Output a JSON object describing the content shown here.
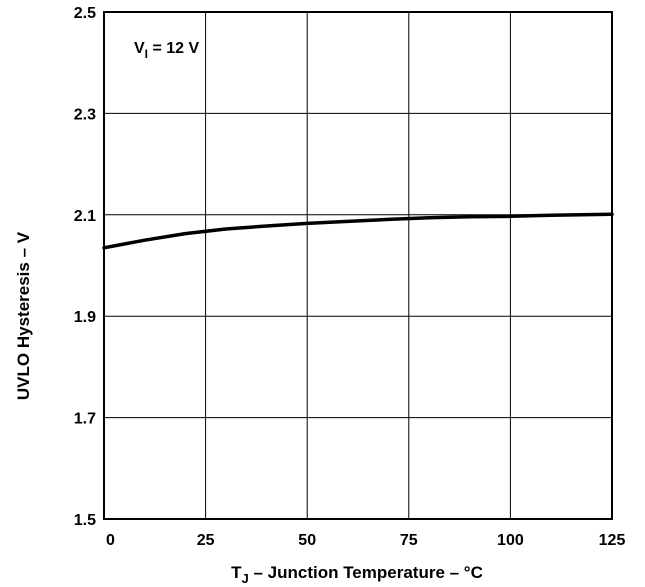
{
  "chart_data": {
    "type": "line",
    "title": "",
    "xlabel": {
      "main": "T",
      "sub": "J",
      "rest": " – Junction Temperature – °C"
    },
    "ylabel": "UVLO Hysteresis – V",
    "annotation": {
      "main": "V",
      "sub": "I",
      "rest": " = 12 V"
    },
    "xlim": [
      0,
      125
    ],
    "ylim": [
      1.5,
      2.5
    ],
    "x_ticks": [
      0,
      25,
      50,
      75,
      100,
      125
    ],
    "x_tick_labels": [
      "0",
      "25",
      "50",
      "75",
      "100",
      "125"
    ],
    "y_ticks": [
      1.5,
      1.7,
      1.9,
      2.1,
      2.3,
      2.5
    ],
    "y_tick_labels": [
      "1.5",
      "1.7",
      "1.9",
      "2.1",
      "2.3",
      "2.5"
    ],
    "grid": true,
    "series": [
      {
        "x": [
          0,
          10,
          20,
          30,
          40,
          50,
          60,
          70,
          80,
          90,
          100,
          110,
          125
        ],
        "y": [
          2.035,
          2.05,
          2.063,
          2.072,
          2.078,
          2.083,
          2.087,
          2.091,
          2.094,
          2.096,
          2.097,
          2.099,
          2.101
        ]
      }
    ],
    "colors": {
      "line": "#000000",
      "grid": "#000000",
      "frame": "#000000"
    }
  }
}
